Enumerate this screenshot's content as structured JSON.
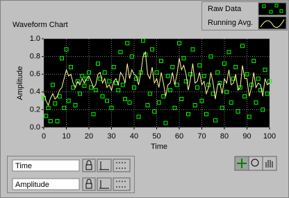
{
  "chart_data": {
    "type": "line",
    "title": "Waveform Chart",
    "x_label": "Time",
    "y_label": "Amplitude",
    "x": [
      0,
      1,
      2,
      3,
      4,
      5,
      6,
      7,
      8,
      9,
      10,
      11,
      12,
      13,
      14,
      15,
      16,
      17,
      18,
      19,
      20,
      21,
      22,
      23,
      24,
      25,
      26,
      27,
      28,
      29,
      30,
      31,
      32,
      33,
      34,
      35,
      36,
      37,
      38,
      39,
      40,
      41,
      42,
      43,
      44,
      45,
      46,
      47,
      48,
      49,
      50,
      51,
      52,
      53,
      54,
      55,
      56,
      57,
      58,
      59,
      60,
      61,
      62,
      63,
      64,
      65,
      66,
      67,
      68,
      69,
      70,
      71,
      72,
      73,
      74,
      75,
      76,
      77,
      78,
      79,
      80,
      81,
      82,
      83,
      84,
      85,
      86,
      87,
      88,
      89,
      90,
      91,
      92,
      93,
      94,
      95,
      96,
      97,
      98,
      99,
      100
    ],
    "series": [
      {
        "name": "Raw Data",
        "color": "#00ff00",
        "marker": "square",
        "line": false,
        "values": [
          0.33,
          0.13,
          0.22,
          0.07,
          0.48,
          0.27,
          0.07,
          0.35,
          0.78,
          0.22,
          0.88,
          0.3,
          0.68,
          0.45,
          0.25,
          0.52,
          0.38,
          0.58,
          0.47,
          0.55,
          0.62,
          0.45,
          0.15,
          0.42,
          0.72,
          0.55,
          0.35,
          0.62,
          0.3,
          0.52,
          0.22,
          0.68,
          0.5,
          0.42,
          0.85,
          0.48,
          0.32,
          0.95,
          0.28,
          0.8,
          0.45,
          0.55,
          0.12,
          0.62,
          0.98,
          0.82,
          0.25,
          0.38,
          0.88,
          0.18,
          0.62,
          0.28,
          0.75,
          0.35,
          0.05,
          0.58,
          0.42,
          0.68,
          0.22,
          0.48,
          0.95,
          0.32,
          0.78,
          0.52,
          0.15,
          0.6,
          0.88,
          0.25,
          0.45,
          0.7,
          0.3,
          0.58,
          0.15,
          0.48,
          0.8,
          0.38,
          0.08,
          0.62,
          0.5,
          0.22,
          0.72,
          0.4,
          0.85,
          0.28,
          0.55,
          0.68,
          0.18,
          0.45,
          0.92,
          0.35,
          0.6,
          0.12,
          0.48,
          0.75,
          0.28,
          0.55,
          0.42,
          0.2,
          0.65,
          0.38,
          0.52
        ]
      },
      {
        "name": "Running Avg.",
        "color": "#ffff99",
        "marker": "none",
        "line": true,
        "values": [
          0.38,
          0.3,
          0.25,
          0.33,
          0.38,
          0.32,
          0.35,
          0.42,
          0.45,
          0.55,
          0.65,
          0.58,
          0.6,
          0.5,
          0.45,
          0.52,
          0.48,
          0.55,
          0.5,
          0.55,
          0.58,
          0.52,
          0.45,
          0.48,
          0.6,
          0.62,
          0.5,
          0.55,
          0.45,
          0.48,
          0.42,
          0.52,
          0.55,
          0.48,
          0.62,
          0.58,
          0.5,
          0.72,
          0.55,
          0.65,
          0.6,
          0.58,
          0.48,
          0.62,
          0.8,
          0.85,
          0.6,
          0.55,
          0.68,
          0.5,
          0.55,
          0.45,
          0.62,
          0.5,
          0.35,
          0.48,
          0.5,
          0.62,
          0.48,
          0.6,
          0.78,
          0.65,
          0.7,
          0.6,
          0.42,
          0.55,
          0.72,
          0.5,
          0.52,
          0.62,
          0.48,
          0.52,
          0.38,
          0.45,
          0.62,
          0.5,
          0.32,
          0.48,
          0.5,
          0.38,
          0.55,
          0.5,
          0.65,
          0.48,
          0.5,
          0.6,
          0.42,
          0.45,
          0.7,
          0.55,
          0.55,
          0.35,
          0.45,
          0.62,
          0.45,
          0.5,
          0.48,
          0.35,
          0.55,
          0.48,
          0.5
        ]
      }
    ],
    "xlim": [
      0,
      100
    ],
    "ylim": [
      0,
      1
    ],
    "xticks": [
      0,
      10,
      20,
      30,
      40,
      50,
      60,
      70,
      80,
      90,
      100
    ],
    "yticks": [
      {
        "value": 0,
        "label": "0.0"
      },
      0.2,
      0.4,
      0.6,
      0.8,
      {
        "value": 1,
        "label": "1.0"
      }
    ],
    "grid": true,
    "legend": "top-right",
    "background": "#000000"
  },
  "scale_legend": {
    "x_name": "Time",
    "y_name": "Amplitude"
  }
}
